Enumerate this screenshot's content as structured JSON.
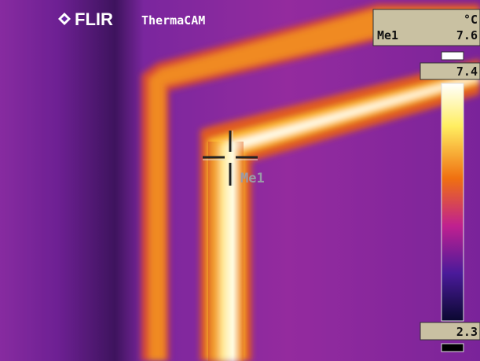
{
  "logo": {
    "brand": "FLIR",
    "product": "ThermaCAM"
  },
  "readout": {
    "unit": "°C",
    "label": "Me1",
    "value": "7.6"
  },
  "scale": {
    "max": "7.4",
    "min": "2.3"
  },
  "spot": {
    "label": "Me1"
  }
}
